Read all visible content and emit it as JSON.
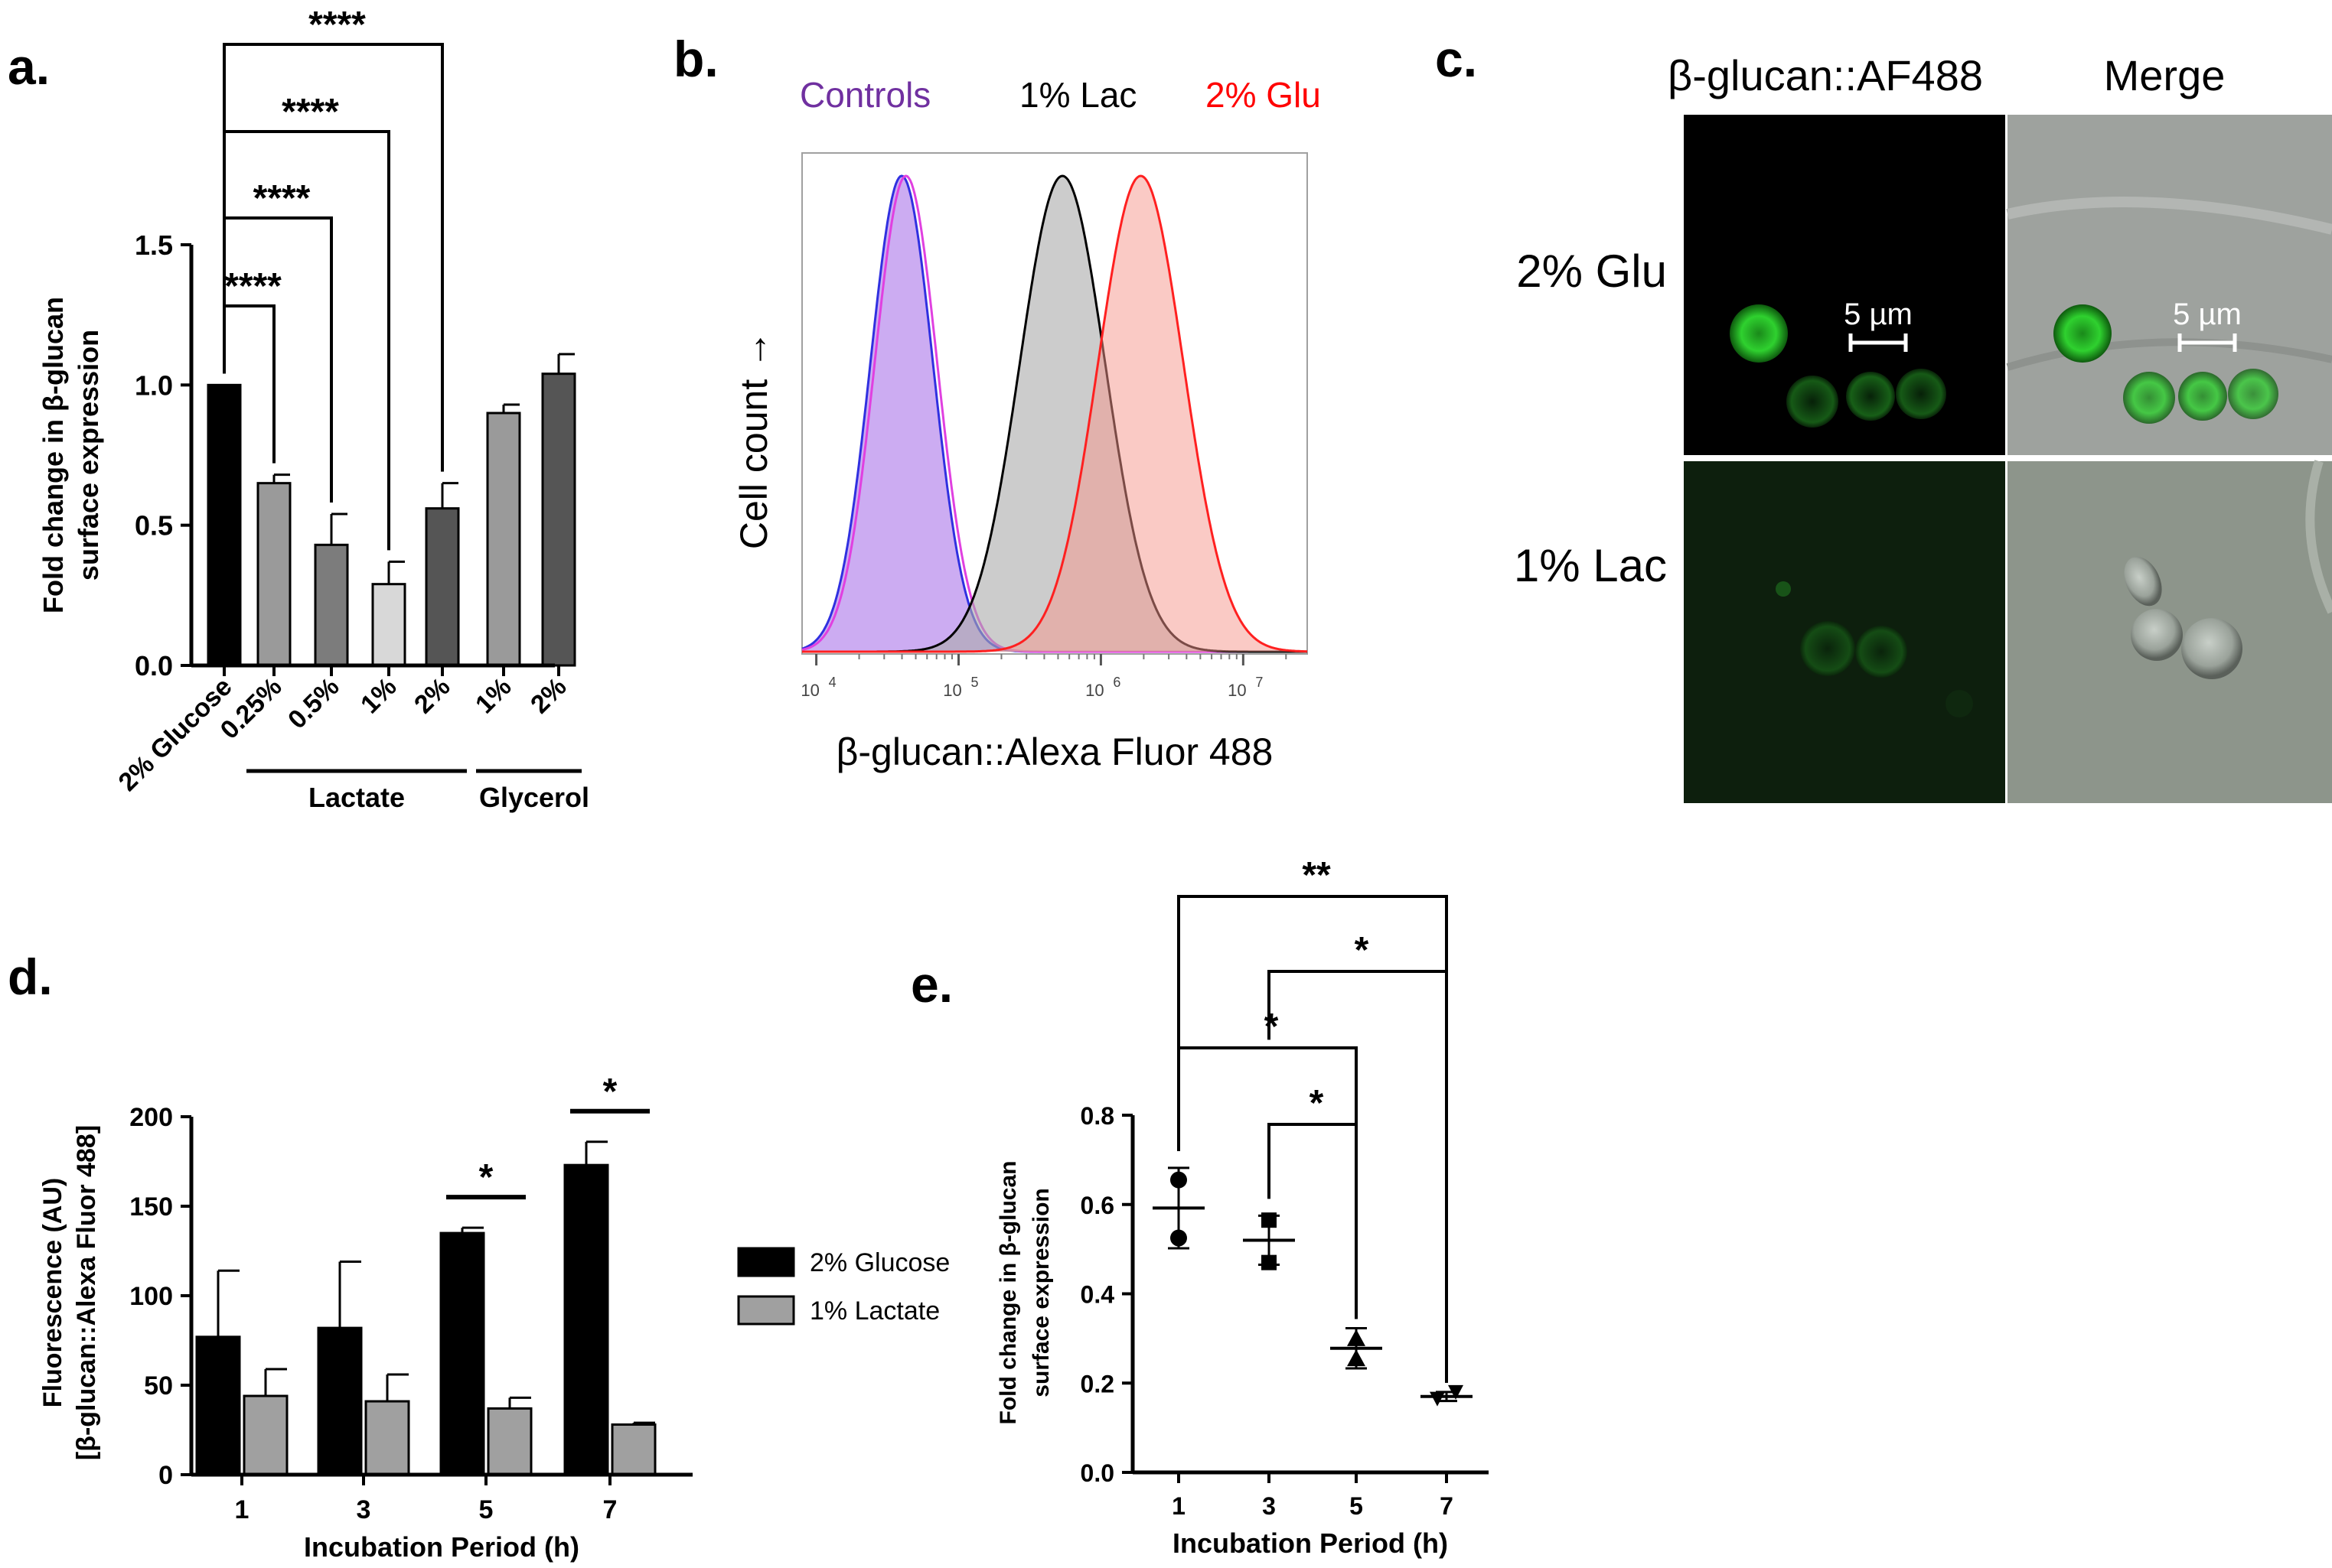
{
  "panels": {
    "a": {
      "letter": "a.",
      "type": "bar",
      "ylabel_line1": "Fold change in β-glucan",
      "ylabel_line2": "surface expression",
      "ylim": [
        0,
        1.5
      ],
      "yticks": [
        "0.0",
        "0.5",
        "1.0",
        "1.5"
      ],
      "categories": [
        "2% Glucose",
        "0.25%",
        "0.5%",
        "1%",
        "2%",
        "1%",
        "2%"
      ],
      "values": [
        1.0,
        0.65,
        0.43,
        0.29,
        0.56,
        0.9,
        1.04
      ],
      "errors": [
        0,
        0.03,
        0.11,
        0.08,
        0.09,
        0.03,
        0.07
      ],
      "colors": [
        "#000000",
        "#9a9a9a",
        "#7c7c7c",
        "#d8d8d8",
        "#555555",
        "#9a9a9a",
        "#555555"
      ],
      "groups": [
        {
          "label": "Lactate"
        },
        {
          "label": "Glycerol"
        }
      ],
      "significance": [
        "****",
        "****",
        "****",
        "****"
      ]
    },
    "b": {
      "letter": "b.",
      "type": "histogram",
      "legend": [
        {
          "label": "Controls",
          "color": "#7030a0"
        },
        {
          "label": "1% Lac",
          "color": "#000000"
        },
        {
          "label": "2% Glu",
          "color": "#ff0000"
        }
      ],
      "ylabel": "Cell count →",
      "xlabel": "β-glucan::Alexa Fluor 488",
      "xscale": "log",
      "xticks": [
        {
          "base": "10",
          "exp": "4"
        },
        {
          "base": "10",
          "exp": "5"
        },
        {
          "base": "10",
          "exp": "6"
        },
        {
          "base": "10",
          "exp": "7"
        }
      ],
      "series": [
        {
          "name": "Controls",
          "peak_log10": 4.6,
          "sigma_log10": 0.22
        },
        {
          "name": "1% Lac",
          "peak_log10": 5.73,
          "sigma_log10": 0.3
        },
        {
          "name": "2% Glu",
          "peak_log10": 6.28,
          "sigma_log10": 0.3
        }
      ]
    },
    "c": {
      "letter": "c.",
      "type": "micrograph",
      "col_labels": [
        "β-glucan::AF488",
        "Merge"
      ],
      "row_labels": [
        "2% Glu",
        "1% Lac"
      ],
      "scalebar": "5 µm"
    },
    "d": {
      "letter": "d.",
      "type": "bar",
      "ylabel_line1": "Fluorescence (AU)",
      "ylabel_line2": "[β-glucan::Alexa Fluor 488]",
      "xlabel": "Incubation Period (h)",
      "ylim": [
        0,
        200
      ],
      "yticks": [
        "0",
        "50",
        "100",
        "150",
        "200"
      ],
      "categories": [
        "1",
        "3",
        "5",
        "7"
      ],
      "series": [
        {
          "name": "2% Glucose",
          "values": [
            77,
            82,
            135,
            173
          ],
          "errors": [
            37,
            37,
            3,
            13
          ],
          "color": "#000000"
        },
        {
          "name": "1% Lactate",
          "values": [
            44,
            41,
            37,
            28
          ],
          "errors": [
            15,
            15,
            6,
            1
          ],
          "color": "#a0a0a0"
        }
      ],
      "significance": [
        "*",
        "*"
      ]
    },
    "e": {
      "letter": "e.",
      "type": "scatter",
      "ylabel_line1": "Fold change in β-glucan",
      "ylabel_line2": "surface expression",
      "xlabel": "Incubation Period (h)",
      "ylim": [
        0,
        0.8
      ],
      "yticks": [
        "0.0",
        "0.2",
        "0.4",
        "0.6",
        "0.8"
      ],
      "categories": [
        "1",
        "3",
        "5",
        "7"
      ],
      "points": [
        [
          0.655,
          0.525
        ],
        [
          0.565,
          0.47
        ],
        [
          0.3,
          0.255
        ],
        [
          0.165,
          0.18
        ]
      ],
      "means": [
        0.592,
        0.52,
        0.278,
        0.17
      ],
      "errors": [
        0.09,
        0.055,
        0.045,
        0.01
      ],
      "significance": [
        "**",
        "*",
        "*",
        "*"
      ]
    }
  }
}
